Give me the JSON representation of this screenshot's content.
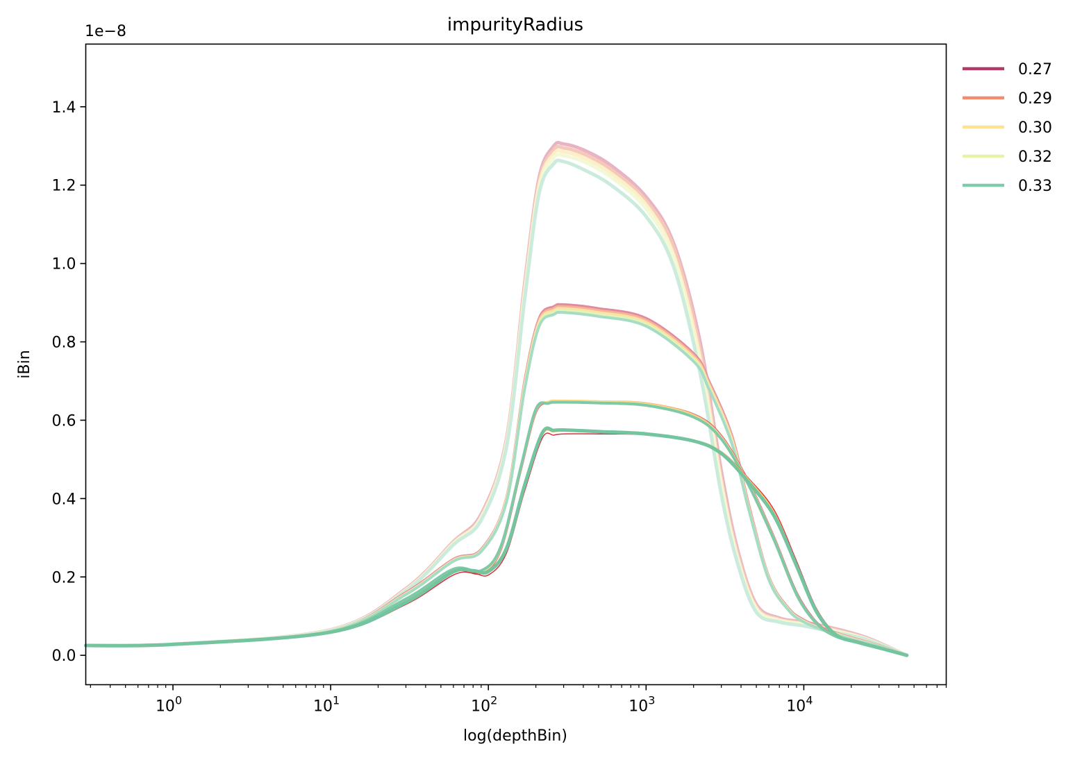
{
  "chart_data": {
    "type": "line",
    "title": "impurityRadius",
    "xlabel": "log(depthBin)",
    "ylabel": "iBin",
    "y_offset_label": "1e−8",
    "xscale": "log",
    "xlim": [
      0.28,
      80000
    ],
    "ylim": [
      -0.075,
      1.56
    ],
    "y_unit_multiplier": "1e-8",
    "grid": false,
    "legend_position": "outside-top-right",
    "xticks": [
      {
        "value": 1,
        "label": "10",
        "exp": "0"
      },
      {
        "value": 10,
        "label": "10",
        "exp": "1"
      },
      {
        "value": 100,
        "label": "10",
        "exp": "2"
      },
      {
        "value": 1000,
        "label": "10",
        "exp": "3"
      },
      {
        "value": 10000,
        "label": "10",
        "exp": "4"
      }
    ],
    "yticks": [
      {
        "value": 0.0,
        "label": "0.0"
      },
      {
        "value": 0.2,
        "label": "0.2"
      },
      {
        "value": 0.4,
        "label": "0.4"
      },
      {
        "value": 0.6,
        "label": "0.6"
      },
      {
        "value": 0.8,
        "label": "0.8"
      },
      {
        "value": 1.0,
        "label": "1.0"
      },
      {
        "value": 1.2,
        "label": "1.2"
      },
      {
        "value": 1.4,
        "label": "1.4"
      }
    ],
    "legend": [
      {
        "name": "0.27",
        "color": "#b03a6a"
      },
      {
        "name": "0.29",
        "color": "#f28d6e"
      },
      {
        "name": "0.30",
        "color": "#fde195"
      },
      {
        "name": "0.32",
        "color": "#e7f4a6"
      },
      {
        "name": "0.33",
        "color": "#7fcba9"
      }
    ],
    "series": [
      {
        "name": "0.27",
        "group": "peak-1.30",
        "color": "#e8b4c4",
        "width": 5,
        "x": [
          0.28,
          1,
          10,
          30,
          60,
          90,
          130,
          170,
          210,
          260,
          300,
          400,
          600,
          1000,
          1500,
          2200,
          3000,
          3800,
          5000,
          7000,
          10000,
          15000,
          25000,
          45000
        ],
        "y": [
          0.025,
          0.028,
          0.065,
          0.17,
          0.29,
          0.36,
          0.55,
          0.95,
          1.22,
          1.3,
          1.305,
          1.29,
          1.25,
          1.17,
          1.05,
          0.8,
          0.47,
          0.27,
          0.13,
          0.095,
          0.085,
          0.07,
          0.045,
          0.0
        ]
      },
      {
        "name": "0.29",
        "group": "peak-1.30",
        "color": "#f6c8b8",
        "width": 5,
        "x": [
          0.28,
          1,
          10,
          30,
          60,
          90,
          130,
          170,
          210,
          260,
          300,
          400,
          600,
          1000,
          1500,
          2200,
          3000,
          3800,
          5000,
          7000,
          10000,
          15000,
          25000,
          45000
        ],
        "y": [
          0.025,
          0.028,
          0.064,
          0.168,
          0.288,
          0.355,
          0.545,
          0.94,
          1.21,
          1.29,
          1.295,
          1.28,
          1.24,
          1.16,
          1.04,
          0.78,
          0.45,
          0.26,
          0.125,
          0.092,
          0.082,
          0.067,
          0.043,
          0.0
        ]
      },
      {
        "name": "0.30",
        "group": "peak-1.30",
        "color": "#fdefc7",
        "width": 5,
        "x": [
          0.28,
          1,
          10,
          30,
          60,
          90,
          130,
          170,
          210,
          260,
          300,
          400,
          600,
          1000,
          1500,
          2200,
          3000,
          3800,
          5000,
          7000,
          10000,
          15000,
          25000,
          45000
        ],
        "y": [
          0.025,
          0.028,
          0.064,
          0.167,
          0.286,
          0.352,
          0.54,
          0.93,
          1.2,
          1.28,
          1.285,
          1.27,
          1.23,
          1.15,
          1.02,
          0.76,
          0.44,
          0.25,
          0.12,
          0.09,
          0.08,
          0.065,
          0.042,
          0.0
        ]
      },
      {
        "name": "0.32",
        "group": "peak-1.30",
        "color": "#f3f9d6",
        "width": 5,
        "x": [
          0.28,
          1,
          10,
          30,
          60,
          90,
          130,
          170,
          210,
          260,
          300,
          400,
          600,
          1000,
          1500,
          2200,
          3000,
          3800,
          5000,
          7000,
          10000,
          15000,
          25000,
          45000
        ],
        "y": [
          0.025,
          0.028,
          0.064,
          0.166,
          0.284,
          0.35,
          0.535,
          0.92,
          1.19,
          1.27,
          1.275,
          1.26,
          1.22,
          1.14,
          1.01,
          0.74,
          0.43,
          0.245,
          0.118,
          0.088,
          0.078,
          0.063,
          0.041,
          0.0
        ]
      },
      {
        "name": "0.33",
        "group": "peak-1.30",
        "color": "#cbebdc",
        "width": 5,
        "x": [
          0.28,
          1,
          10,
          30,
          60,
          90,
          130,
          170,
          210,
          260,
          300,
          400,
          600,
          1000,
          1500,
          2200,
          3000,
          3800,
          5000,
          7000,
          10000,
          15000,
          25000,
          45000
        ],
        "y": [
          0.025,
          0.028,
          0.063,
          0.165,
          0.282,
          0.345,
          0.53,
          0.91,
          1.18,
          1.255,
          1.26,
          1.24,
          1.2,
          1.12,
          0.99,
          0.72,
          0.41,
          0.235,
          0.11,
          0.085,
          0.075,
          0.06,
          0.04,
          0.0
        ]
      },
      {
        "name": "0.27",
        "group": "peak-0.89",
        "color": "#e08aa0",
        "width": 4,
        "x": [
          0.28,
          1,
          10,
          30,
          60,
          90,
          130,
          170,
          210,
          260,
          300,
          500,
          1000,
          2000,
          2500,
          3500,
          4500,
          6000,
          8000,
          10000,
          14000,
          20000,
          30000,
          45000
        ],
        "y": [
          0.025,
          0.028,
          0.062,
          0.16,
          0.245,
          0.27,
          0.4,
          0.7,
          0.86,
          0.89,
          0.895,
          0.885,
          0.86,
          0.77,
          0.7,
          0.56,
          0.38,
          0.2,
          0.12,
          0.09,
          0.065,
          0.045,
          0.025,
          0.0
        ]
      },
      {
        "name": "0.29",
        "group": "peak-0.89",
        "color": "#f5b49a",
        "width": 4,
        "x": [
          0.28,
          1,
          10,
          30,
          60,
          90,
          130,
          170,
          210,
          260,
          300,
          500,
          1000,
          2000,
          2500,
          3500,
          4500,
          6000,
          8000,
          10000,
          14000,
          20000,
          30000,
          45000
        ],
        "y": [
          0.025,
          0.028,
          0.062,
          0.158,
          0.243,
          0.268,
          0.398,
          0.695,
          0.855,
          0.885,
          0.89,
          0.88,
          0.855,
          0.765,
          0.695,
          0.555,
          0.375,
          0.198,
          0.118,
          0.088,
          0.064,
          0.044,
          0.024,
          0.0
        ]
      },
      {
        "name": "0.30",
        "group": "peak-0.89",
        "color": "#fce1a0",
        "width": 4,
        "x": [
          0.28,
          1,
          10,
          30,
          60,
          90,
          130,
          170,
          210,
          260,
          300,
          500,
          1000,
          2000,
          2500,
          3500,
          4500,
          6000,
          8000,
          10000,
          14000,
          20000,
          30000,
          45000
        ],
        "y": [
          0.025,
          0.028,
          0.062,
          0.157,
          0.242,
          0.267,
          0.396,
          0.69,
          0.85,
          0.88,
          0.885,
          0.875,
          0.85,
          0.76,
          0.69,
          0.55,
          0.372,
          0.196,
          0.117,
          0.087,
          0.063,
          0.043,
          0.024,
          0.0
        ]
      },
      {
        "name": "0.32",
        "group": "peak-0.89",
        "color": "#e4f2b8",
        "width": 4,
        "x": [
          0.28,
          1,
          10,
          30,
          60,
          90,
          130,
          170,
          210,
          260,
          300,
          500,
          1000,
          2000,
          2500,
          3500,
          4500,
          6000,
          8000,
          10000,
          14000,
          20000,
          30000,
          45000
        ],
        "y": [
          0.025,
          0.028,
          0.062,
          0.156,
          0.241,
          0.266,
          0.394,
          0.685,
          0.845,
          0.875,
          0.88,
          0.87,
          0.845,
          0.755,
          0.685,
          0.545,
          0.37,
          0.195,
          0.116,
          0.086,
          0.062,
          0.042,
          0.023,
          0.0
        ]
      },
      {
        "name": "0.33",
        "group": "peak-0.89",
        "color": "#a6dcc4",
        "width": 4,
        "x": [
          0.28,
          1,
          10,
          30,
          60,
          90,
          130,
          170,
          210,
          260,
          300,
          500,
          1000,
          2000,
          2500,
          3500,
          4500,
          6000,
          8000,
          10000,
          14000,
          20000,
          30000,
          45000
        ],
        "y": [
          0.025,
          0.028,
          0.061,
          0.155,
          0.24,
          0.265,
          0.39,
          0.68,
          0.84,
          0.87,
          0.875,
          0.865,
          0.84,
          0.75,
          0.68,
          0.54,
          0.368,
          0.193,
          0.115,
          0.085,
          0.061,
          0.041,
          0.023,
          0.0
        ]
      },
      {
        "name": "0.27",
        "group": "peak-0.65",
        "color": "#c8506e",
        "width": 3,
        "x": [
          0.28,
          1,
          10,
          30,
          60,
          90,
          120,
          160,
          200,
          240,
          280,
          500,
          1000,
          2000,
          3000,
          4500,
          6500,
          9000,
          12000,
          16000,
          22000,
          30000,
          45000
        ],
        "y": [
          0.025,
          0.028,
          0.06,
          0.14,
          0.215,
          0.21,
          0.27,
          0.47,
          0.62,
          0.645,
          0.648,
          0.647,
          0.642,
          0.615,
          0.56,
          0.44,
          0.3,
          0.16,
          0.085,
          0.05,
          0.035,
          0.02,
          0.0
        ]
      },
      {
        "name": "0.29",
        "group": "peak-0.65",
        "color": "#f4a582",
        "width": 3,
        "x": [
          0.28,
          1,
          10,
          30,
          60,
          90,
          120,
          160,
          200,
          240,
          280,
          500,
          1000,
          2000,
          3000,
          4500,
          6500,
          9000,
          12000,
          16000,
          22000,
          30000,
          45000
        ],
        "y": [
          0.025,
          0.028,
          0.06,
          0.141,
          0.216,
          0.212,
          0.272,
          0.472,
          0.622,
          0.646,
          0.649,
          0.648,
          0.643,
          0.614,
          0.558,
          0.438,
          0.298,
          0.158,
          0.084,
          0.049,
          0.034,
          0.02,
          0.0
        ]
      },
      {
        "name": "0.30",
        "group": "peak-0.65",
        "color": "#fdd57e",
        "width": 3,
        "x": [
          0.28,
          1,
          10,
          30,
          60,
          90,
          120,
          160,
          200,
          240,
          280,
          500,
          1000,
          2000,
          3000,
          4500,
          6500,
          9000,
          12000,
          16000,
          22000,
          30000,
          45000
        ],
        "y": [
          0.025,
          0.028,
          0.06,
          0.142,
          0.217,
          0.213,
          0.274,
          0.475,
          0.625,
          0.647,
          0.65,
          0.648,
          0.642,
          0.612,
          0.556,
          0.436,
          0.296,
          0.157,
          0.083,
          0.049,
          0.034,
          0.02,
          0.0
        ]
      },
      {
        "name": "0.32",
        "group": "peak-0.65",
        "color": "#d6ee9b",
        "width": 3,
        "x": [
          0.28,
          1,
          10,
          30,
          60,
          90,
          120,
          160,
          200,
          240,
          280,
          500,
          1000,
          2000,
          3000,
          4500,
          6500,
          9000,
          12000,
          16000,
          22000,
          30000,
          45000
        ],
        "y": [
          0.025,
          0.028,
          0.06,
          0.143,
          0.218,
          0.214,
          0.276,
          0.477,
          0.627,
          0.645,
          0.648,
          0.646,
          0.64,
          0.61,
          0.554,
          0.434,
          0.295,
          0.156,
          0.083,
          0.048,
          0.033,
          0.019,
          0.0
        ]
      },
      {
        "name": "0.33",
        "group": "peak-0.65",
        "color": "#80c9a6",
        "width": 4,
        "x": [
          0.28,
          1,
          10,
          30,
          60,
          90,
          120,
          160,
          200,
          240,
          280,
          500,
          1000,
          2000,
          3000,
          4500,
          6500,
          9000,
          12000,
          16000,
          22000,
          30000,
          45000
        ],
        "y": [
          0.025,
          0.028,
          0.06,
          0.144,
          0.22,
          0.216,
          0.278,
          0.478,
          0.628,
          0.643,
          0.646,
          0.644,
          0.638,
          0.608,
          0.552,
          0.432,
          0.293,
          0.155,
          0.082,
          0.048,
          0.033,
          0.019,
          0.0
        ]
      },
      {
        "name": "0.27",
        "group": "peak-0.57",
        "color": "#d7303f",
        "width": 1.5,
        "x": [
          0.28,
          1,
          10,
          30,
          60,
          80,
          100,
          130,
          170,
          220,
          260,
          300,
          500,
          1000,
          2000,
          3000,
          4500,
          6500,
          9000,
          12000,
          16000,
          22000,
          30000,
          45000
        ],
        "y": [
          0.025,
          0.028,
          0.058,
          0.13,
          0.205,
          0.21,
          0.205,
          0.26,
          0.42,
          0.555,
          0.562,
          0.565,
          0.565,
          0.563,
          0.548,
          0.52,
          0.45,
          0.37,
          0.24,
          0.12,
          0.055,
          0.035,
          0.02,
          0.0
        ]
      },
      {
        "name": "0.30",
        "group": "peak-0.57",
        "color": "#fcc670",
        "width": 1.5,
        "x": [
          0.28,
          1,
          10,
          30,
          60,
          80,
          100,
          130,
          170,
          220,
          260,
          300,
          500,
          1000,
          2000,
          3000,
          4500,
          6500,
          9000,
          12000,
          16000,
          22000,
          30000,
          45000
        ],
        "y": [
          0.025,
          0.028,
          0.059,
          0.133,
          0.21,
          0.213,
          0.21,
          0.266,
          0.428,
          0.562,
          0.57,
          0.572,
          0.57,
          0.566,
          0.55,
          0.52,
          0.448,
          0.365,
          0.235,
          0.118,
          0.054,
          0.034,
          0.02,
          0.0
        ]
      },
      {
        "name": "0.33",
        "group": "peak-0.57",
        "color": "#74c4a0",
        "width": 5,
        "x": [
          0.28,
          1,
          10,
          30,
          60,
          80,
          100,
          130,
          170,
          220,
          260,
          300,
          500,
          1000,
          2000,
          3000,
          4500,
          6500,
          9000,
          12000,
          16000,
          22000,
          30000,
          45000
        ],
        "y": [
          0.025,
          0.028,
          0.059,
          0.135,
          0.213,
          0.216,
          0.214,
          0.272,
          0.435,
          0.568,
          0.574,
          0.575,
          0.571,
          0.565,
          0.547,
          0.515,
          0.44,
          0.355,
          0.228,
          0.112,
          0.052,
          0.033,
          0.019,
          0.0
        ]
      }
    ]
  }
}
